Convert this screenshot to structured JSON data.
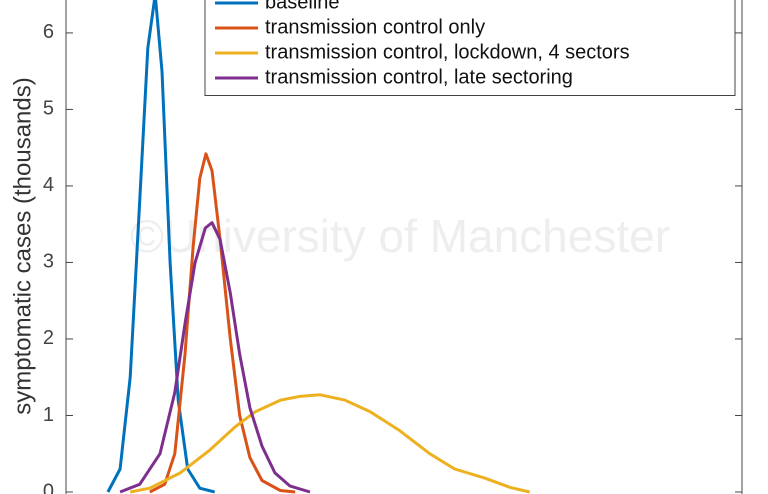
{
  "chart_data": {
    "type": "line",
    "ylabel": "symptomatic cases (thousands)",
    "annotation": "©University of Manchester",
    "xlim": [
      0,
      100
    ],
    "ylim": [
      0,
      6.43
    ],
    "yticks": [
      0,
      1,
      2,
      3,
      4,
      5,
      6
    ],
    "legend": "top-right",
    "series": [
      {
        "name": "baseline",
        "color": "#0072BD",
        "x": [
          6.2,
          8,
          9.5,
          10.9,
          12.1,
          13.2,
          14.2,
          15.4,
          16.6,
          18,
          19.8,
          22
        ],
        "values": [
          0,
          0.3,
          1.5,
          3.8,
          5.8,
          6.5,
          5.5,
          3.0,
          1.2,
          0.3,
          0.05,
          0
        ]
      },
      {
        "name": "transmission control only",
        "color": "#D95319",
        "x": [
          12.4,
          14.6,
          16.1,
          17.6,
          18.8,
          19.8,
          20.7,
          21.6,
          22.8,
          24.3,
          25.7,
          27.2,
          29,
          31.7,
          33.9
        ],
        "values": [
          0,
          0.1,
          0.5,
          1.8,
          3.2,
          4.1,
          4.42,
          4.2,
          3.3,
          2.0,
          1.0,
          0.45,
          0.15,
          0.02,
          0
        ]
      },
      {
        "name": "transmission control, lockdown, 4 sectors",
        "color": "#EDB120",
        "x": [
          9.5,
          12.4,
          16.9,
          21.3,
          25,
          28,
          31.7,
          34.6,
          37.6,
          41.3,
          45,
          49.4,
          53.8,
          57.5,
          62,
          65.7,
          68.6
        ],
        "values": [
          0,
          0.05,
          0.25,
          0.55,
          0.85,
          1.05,
          1.2,
          1.25,
          1.27,
          1.2,
          1.05,
          0.8,
          0.5,
          0.3,
          0.18,
          0.06,
          0
        ]
      },
      {
        "name": "transmission control, late sectoring",
        "color": "#7E2F8E",
        "x": [
          8,
          10.9,
          13.9,
          16.1,
          17.6,
          19.1,
          20.6,
          21.6,
          22.8,
          24.3,
          25.7,
          27.2,
          29,
          30.9,
          33.1,
          36.1
        ],
        "values": [
          0,
          0.1,
          0.5,
          1.3,
          2.2,
          3.0,
          3.45,
          3.52,
          3.3,
          2.6,
          1.8,
          1.1,
          0.6,
          0.25,
          0.08,
          0
        ]
      }
    ]
  }
}
